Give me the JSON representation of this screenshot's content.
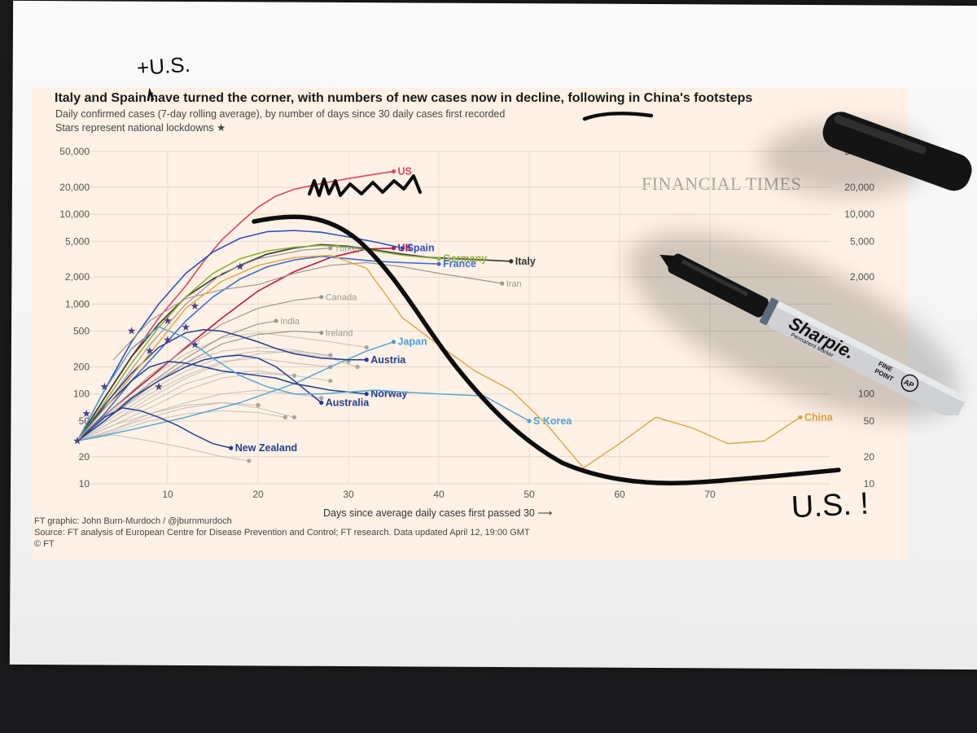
{
  "header": {
    "title": "Italy and Spain have turned the corner, with numbers of new cases now in decline, following in China's footsteps",
    "subtitle": "Daily confirmed cases (7-day rolling average), by number of days since 30 daily cases first recorded",
    "note": "Stars represent national lockdowns ★"
  },
  "brand": {
    "logo": "FINANCIAL TIMES"
  },
  "footer": {
    "credit": "FT graphic: John Burn-Murdoch / @jburnmurdoch",
    "source": "Source: FT analysis of European Centre for Disease Prevention and Control; FT research. Data updated April 12, 19:00 GMT",
    "copyright": "© FT"
  },
  "annotations": {
    "insert_text": "+U.S.",
    "bottom_text": "U.S. !",
    "marker_brand": "Sharpie.",
    "marker_sub": "Permanent Marker",
    "marker_fine": "FINE",
    "marker_point": "POINT",
    "marker_ap": "AP"
  },
  "colors": {
    "panel": "#fff1e5",
    "ink": "#0d0d0d",
    "us": "#e0455b",
    "uk": "#c2183f",
    "italy": "#333333",
    "spain": "#2a4fc0",
    "germany": "#8fb339",
    "france": "#3d6fd1",
    "china": "#e3a33c",
    "skorea": "#4aa3d8",
    "navy": "#1f3f8f",
    "grey": "#b9b6b2"
  },
  "chart_data": {
    "type": "line",
    "title": "Italy and Spain have turned the corner, with numbers of new cases now in decline, following in China's footsteps",
    "xlabel": "Days since average daily cases first passed 30 ⟶",
    "ylabel": "Daily confirmed cases (7-day rolling average)",
    "xlim": [
      0,
      80
    ],
    "ylim": [
      10,
      50000
    ],
    "yscale": "log",
    "x_ticks": [
      10,
      20,
      30,
      40,
      50,
      60,
      70
    ],
    "y_ticks": [
      10,
      20,
      50,
      100,
      200,
      500,
      1000,
      2000,
      5000,
      10000,
      20000,
      50000
    ],
    "y_tick_labels": [
      "10",
      "20",
      "50",
      "100",
      "200",
      "500",
      "1,000",
      "2,000",
      "5,000",
      "10,000",
      "20,000",
      "50,000"
    ],
    "right_tick_labels": [
      "10",
      "20",
      "50",
      "100",
      "200",
      "",
      "",
      "2,000",
      "5,000",
      "10,000",
      "20,000",
      "50,000"
    ],
    "grid": true,
    "series": [
      {
        "name": "US",
        "color": "#e0455b",
        "labeled": true,
        "weight": 1.6,
        "x": [
          0,
          3,
          6,
          9,
          12,
          14,
          16,
          18,
          20,
          22,
          24,
          27,
          30,
          33,
          35
        ],
        "y": [
          30,
          90,
          260,
          700,
          1600,
          3000,
          5200,
          8000,
          12000,
          16000,
          19000,
          22000,
          25000,
          28000,
          30000
        ]
      },
      {
        "name": "UK",
        "color": "#c2183f",
        "labeled": true,
        "weight": 1.6,
        "x": [
          0,
          4,
          8,
          12,
          16,
          20,
          24,
          28,
          32,
          35
        ],
        "y": [
          30,
          70,
          150,
          330,
          700,
          1400,
          2300,
          3300,
          4100,
          4200
        ]
      },
      {
        "name": "Italy",
        "color": "#333333",
        "labeled": true,
        "weight": 1.6,
        "x": [
          0,
          3,
          6,
          9,
          12,
          15,
          18,
          21,
          24,
          27,
          30,
          33,
          36,
          39,
          42,
          45,
          48
        ],
        "y": [
          30,
          90,
          260,
          600,
          1200,
          1900,
          2700,
          3600,
          4200,
          4600,
          4400,
          4000,
          3600,
          3300,
          3200,
          3100,
          3000
        ]
      },
      {
        "name": "Spain",
        "color": "#2a4fc0",
        "labeled": true,
        "weight": 1.6,
        "x": [
          0,
          3,
          6,
          9,
          12,
          15,
          18,
          21,
          24,
          27,
          30,
          33,
          36
        ],
        "y": [
          30,
          110,
          380,
          1000,
          2200,
          3800,
          5400,
          6400,
          6600,
          6300,
          5600,
          4900,
          4200
        ]
      },
      {
        "name": "Germany",
        "color": "#8fb339",
        "labeled": true,
        "weight": 1.6,
        "x": [
          0,
          3,
          6,
          9,
          12,
          15,
          18,
          21,
          24,
          27,
          30,
          33,
          36,
          40
        ],
        "y": [
          30,
          80,
          220,
          550,
          1200,
          2200,
          3200,
          3900,
          4300,
          4500,
          4300,
          3900,
          3500,
          3200
        ]
      },
      {
        "name": "France",
        "color": "#3d6fd1",
        "labeled": true,
        "weight": 1.6,
        "x": [
          0,
          3,
          6,
          9,
          12,
          15,
          18,
          21,
          24,
          27,
          30,
          33,
          36,
          40
        ],
        "y": [
          30,
          60,
          140,
          300,
          650,
          1200,
          1900,
          2600,
          3100,
          3400,
          3200,
          3000,
          2900,
          2800
        ]
      },
      {
        "name": "Turkey",
        "color": "#9b9794",
        "labeled": true,
        "weight": 1.2,
        "x": [
          0,
          4,
          8,
          12,
          16,
          20,
          25,
          28
        ],
        "y": [
          30,
          100,
          350,
          1000,
          2200,
          3200,
          4000,
          4200
        ]
      },
      {
        "name": "Iran",
        "color": "#9b9794",
        "labeled": true,
        "weight": 1.2,
        "x": [
          4,
          8,
          12,
          16,
          20,
          24,
          28,
          32,
          36,
          40,
          44,
          47
        ],
        "y": [
          240,
          650,
          1150,
          1450,
          1650,
          2200,
          2700,
          2900,
          2600,
          2200,
          1900,
          1700
        ]
      },
      {
        "name": "Canada",
        "color": "#9b9794",
        "labeled": true,
        "weight": 1.2,
        "x": [
          0,
          4,
          8,
          12,
          16,
          20,
          24,
          27
        ],
        "y": [
          30,
          70,
          160,
          320,
          600,
          900,
          1100,
          1200
        ]
      },
      {
        "name": "India",
        "color": "#9b9794",
        "labeled": true,
        "weight": 1.2,
        "x": [
          0,
          4,
          8,
          12,
          16,
          20,
          22
        ],
        "y": [
          30,
          60,
          130,
          250,
          430,
          600,
          650
        ]
      },
      {
        "name": "Ireland",
        "color": "#9b9794",
        "labeled": true,
        "weight": 1.2,
        "x": [
          0,
          4,
          8,
          12,
          16,
          20,
          24,
          27
        ],
        "y": [
          30,
          60,
          120,
          220,
          360,
          460,
          500,
          480
        ]
      },
      {
        "name": "Japan",
        "color": "#4aa3d8",
        "labeled": true,
        "weight": 1.4,
        "x": [
          0,
          6,
          12,
          18,
          24,
          28,
          32,
          35
        ],
        "y": [
          30,
          40,
          55,
          80,
          130,
          200,
          300,
          380
        ]
      },
      {
        "name": "Austria",
        "color": "#1f3f8f",
        "labeled": true,
        "weight": 1.5,
        "x": [
          0,
          3,
          6,
          9,
          12,
          14,
          16,
          18,
          20,
          22,
          24,
          27,
          30,
          32
        ],
        "y": [
          30,
          75,
          170,
          330,
          480,
          520,
          500,
          440,
          380,
          320,
          280,
          250,
          240,
          240
        ]
      },
      {
        "name": "Norway",
        "color": "#1f3f8f",
        "labeled": true,
        "weight": 1.5,
        "x": [
          0,
          3,
          6,
          8,
          10,
          12,
          14,
          16,
          18,
          20,
          22,
          24,
          26,
          28,
          30,
          32
        ],
        "y": [
          30,
          70,
          140,
          200,
          230,
          220,
          200,
          180,
          170,
          160,
          150,
          130,
          120,
          110,
          105,
          100
        ]
      },
      {
        "name": "Australia",
        "color": "#1f3f8f",
        "labeled": true,
        "weight": 1.5,
        "x": [
          0,
          3,
          6,
          9,
          12,
          14,
          16,
          18,
          20,
          22,
          24,
          27
        ],
        "y": [
          30,
          50,
          90,
          140,
          200,
          240,
          260,
          270,
          250,
          200,
          140,
          80
        ]
      },
      {
        "name": "New Zealand",
        "color": "#1f3f8f",
        "labeled": true,
        "weight": 1.5,
        "x": [
          0,
          3,
          5,
          7,
          9,
          11,
          13,
          15,
          17
        ],
        "y": [
          30,
          55,
          70,
          65,
          55,
          45,
          35,
          28,
          25
        ]
      },
      {
        "name": "S Korea",
        "color": "#4aa3d8",
        "labeled": true,
        "weight": 1.4,
        "x": [
          0,
          3,
          6,
          9,
          12,
          15,
          18,
          21,
          24,
          27,
          30,
          33,
          36,
          40,
          45,
          50
        ],
        "y": [
          30,
          110,
          320,
          560,
          420,
          250,
          160,
          120,
          100,
          100,
          105,
          110,
          105,
          100,
          95,
          50
        ]
      },
      {
        "name": "China",
        "color": "#e3a33c",
        "labeled": true,
        "weight": 1.4,
        "x": [
          0,
          4,
          8,
          12,
          16,
          20,
          24,
          28,
          32,
          36,
          40,
          44,
          48,
          52,
          56,
          60,
          64,
          68,
          72,
          76,
          80
        ],
        "y": [
          30,
          90,
          280,
          900,
          1800,
          2700,
          3300,
          3500,
          2500,
          700,
          350,
          180,
          110,
          45,
          15,
          28,
          55,
          42,
          28,
          30,
          55
        ]
      },
      {
        "name": "",
        "color": "#b9b6b2",
        "labeled": false,
        "weight": 1,
        "x": [
          0,
          4,
          8,
          12,
          16,
          20,
          24,
          28
        ],
        "y": [
          30,
          45,
          70,
          110,
          150,
          170,
          160,
          140
        ]
      },
      {
        "name": "",
        "color": "#b9b6b2",
        "labeled": false,
        "weight": 1,
        "x": [
          0,
          4,
          8,
          12,
          16,
          20,
          24,
          28,
          31
        ],
        "y": [
          30,
          60,
          110,
          180,
          260,
          300,
          290,
          250,
          200
        ]
      },
      {
        "name": "",
        "color": "#b9b6b2",
        "labeled": false,
        "weight": 1,
        "x": [
          0,
          4,
          8,
          12,
          16,
          20,
          24
        ],
        "y": [
          30,
          50,
          80,
          130,
          170,
          180,
          160
        ]
      },
      {
        "name": "",
        "color": "#b9b6b2",
        "labeled": false,
        "weight": 1,
        "x": [
          0,
          4,
          8,
          12,
          16,
          20,
          24,
          27
        ],
        "y": [
          30,
          40,
          60,
          80,
          100,
          110,
          100,
          90
        ]
      },
      {
        "name": "",
        "color": "#b9b6b2",
        "labeled": false,
        "weight": 1,
        "x": [
          0,
          4,
          8,
          12,
          16,
          20,
          24,
          28
        ],
        "y": [
          30,
          55,
          100,
          160,
          230,
          250,
          220,
          200
        ]
      },
      {
        "name": "",
        "color": "#b9b6b2",
        "labeled": false,
        "weight": 1,
        "x": [
          0,
          4,
          8,
          12,
          16,
          20
        ],
        "y": [
          30,
          40,
          55,
          70,
          80,
          75
        ]
      },
      {
        "name": "",
        "color": "#b9b6b2",
        "labeled": false,
        "weight": 1,
        "x": [
          0,
          4,
          8,
          12,
          16,
          19
        ],
        "y": [
          30,
          35,
          30,
          25,
          20,
          18
        ]
      },
      {
        "name": "",
        "color": "#b9b6b2",
        "labeled": false,
        "weight": 1,
        "x": [
          0,
          4,
          8,
          12,
          16,
          20,
          24,
          28,
          32
        ],
        "y": [
          30,
          70,
          150,
          280,
          420,
          480,
          430,
          380,
          330
        ]
      },
      {
        "name": "",
        "color": "#b9b6b2",
        "labeled": false,
        "weight": 1,
        "x": [
          0,
          4,
          8,
          12,
          16,
          20,
          24
        ],
        "y": [
          30,
          45,
          60,
          75,
          80,
          70,
          55
        ]
      },
      {
        "name": "",
        "color": "#b9b6b2",
        "labeled": false,
        "weight": 1,
        "x": [
          0,
          4,
          8,
          12,
          16,
          20,
          24,
          28
        ],
        "y": [
          30,
          50,
          90,
          150,
          220,
          280,
          300,
          270
        ]
      },
      {
        "name": "",
        "color": "#b9b6b2",
        "labeled": false,
        "weight": 1,
        "x": [
          0,
          4,
          8,
          12,
          16,
          20,
          23
        ],
        "y": [
          30,
          38,
          50,
          60,
          65,
          62,
          55
        ]
      },
      {
        "name": "",
        "color": "#b9b6b2",
        "labeled": false,
        "weight": 1,
        "x": [
          0,
          4,
          8,
          12,
          16,
          20,
          24,
          28,
          30
        ],
        "y": [
          30,
          65,
          130,
          220,
          300,
          330,
          310,
          260,
          230
        ]
      }
    ],
    "lockdowns": [
      {
        "x": 1,
        "y": 60
      },
      {
        "x": 0,
        "y": 30
      },
      {
        "x": 3,
        "y": 120
      },
      {
        "x": 6,
        "y": 500
      },
      {
        "x": 8,
        "y": 300
      },
      {
        "x": 9,
        "y": 120
      },
      {
        "x": 10,
        "y": 650
      },
      {
        "x": 10,
        "y": 400
      },
      {
        "x": 12,
        "y": 550
      },
      {
        "x": 13,
        "y": 950
      },
      {
        "x": 13,
        "y": 350
      },
      {
        "x": 18,
        "y": 2600
      }
    ]
  }
}
